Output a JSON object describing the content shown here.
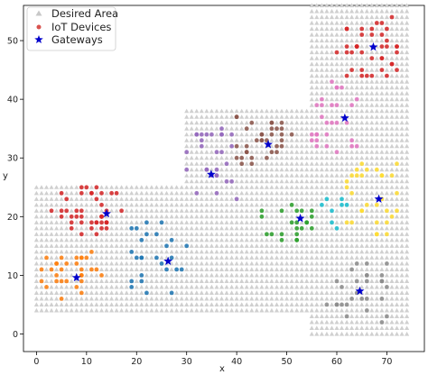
{
  "chart_data": {
    "type": "scatter",
    "title": "",
    "xlabel": "x",
    "ylabel": "y",
    "xlim": [
      -2.6,
      77.5
    ],
    "ylim": [
      -3,
      56
    ],
    "x_ticks": [
      0,
      10,
      20,
      30,
      40,
      50,
      60,
      70
    ],
    "y_ticks": [
      0,
      10,
      20,
      30,
      40,
      50
    ],
    "grid": false,
    "legend_position": "top-left",
    "legend": [
      {
        "label": "Desired Area",
        "marker": "triangle",
        "color": "#c8c8c8"
      },
      {
        "label": "IoT Devices",
        "marker": "circle",
        "color": "#d9534f"
      },
      {
        "label": "Gateways",
        "marker": "star",
        "color": "#0000cc"
      }
    ],
    "desired_area_rectangles": [
      {
        "x": [
          0,
          30
        ],
        "y": [
          4,
          25
        ]
      },
      {
        "x": [
          30,
          55
        ],
        "y": [
          4,
          38
        ]
      },
      {
        "x": [
          55,
          74
        ],
        "y": [
          0,
          56
        ]
      }
    ],
    "desired_area_spacing": [
      1.0,
      1.0
    ],
    "series": [
      {
        "name": "Desired Area",
        "marker": "triangle",
        "color": "#d0d0d0",
        "points": "grid-filled rectangles"
      },
      {
        "name": "Gateways",
        "marker": "star",
        "color": "#0000cc",
        "x": [
          14,
          8,
          26.3,
          34.9,
          46.3,
          52.7,
          61.6,
          67.3,
          68.4,
          64.6
        ],
        "y": [
          20.5,
          9.6,
          12.4,
          27.2,
          32.3,
          19.7,
          36.8,
          48.9,
          23,
          7.3
        ]
      }
    ],
    "device_clusters": [
      {
        "color": "#d62728",
        "cx": 10,
        "cy": 21,
        "sx": 7,
        "sy": 4,
        "n": 42
      },
      {
        "color": "#ff7f0e",
        "cx": 7,
        "cy": 10,
        "sx": 6,
        "sy": 4,
        "n": 30
      },
      {
        "color": "#1f77b4",
        "cx": 24,
        "cy": 13,
        "sx": 6,
        "sy": 6,
        "n": 26
      },
      {
        "color": "#9467bd",
        "cx": 35,
        "cy": 29,
        "sx": 5,
        "sy": 6,
        "n": 28
      },
      {
        "color": "#8c564b",
        "cx": 45,
        "cy": 33,
        "sx": 6,
        "sy": 4,
        "n": 34
      },
      {
        "color": "#2ca02c",
        "cx": 50,
        "cy": 19,
        "sx": 5,
        "sy": 3,
        "n": 22
      },
      {
        "color": "#e377c2",
        "cx": 60,
        "cy": 37,
        "sx": 5,
        "sy": 6,
        "n": 28
      },
      {
        "color": "#d62728",
        "cx": 66,
        "cy": 49,
        "sx": 6,
        "sy": 5,
        "n": 40
      },
      {
        "color": "#ffdd33",
        "cx": 67,
        "cy": 23,
        "sx": 6,
        "sy": 6,
        "n": 30
      },
      {
        "color": "#8c8c8c",
        "cx": 64,
        "cy": 7,
        "sx": 6,
        "sy": 5,
        "n": 28
      },
      {
        "color": "#17becf",
        "cx": 59,
        "cy": 21,
        "sx": 3,
        "sy": 3,
        "n": 8
      }
    ]
  }
}
